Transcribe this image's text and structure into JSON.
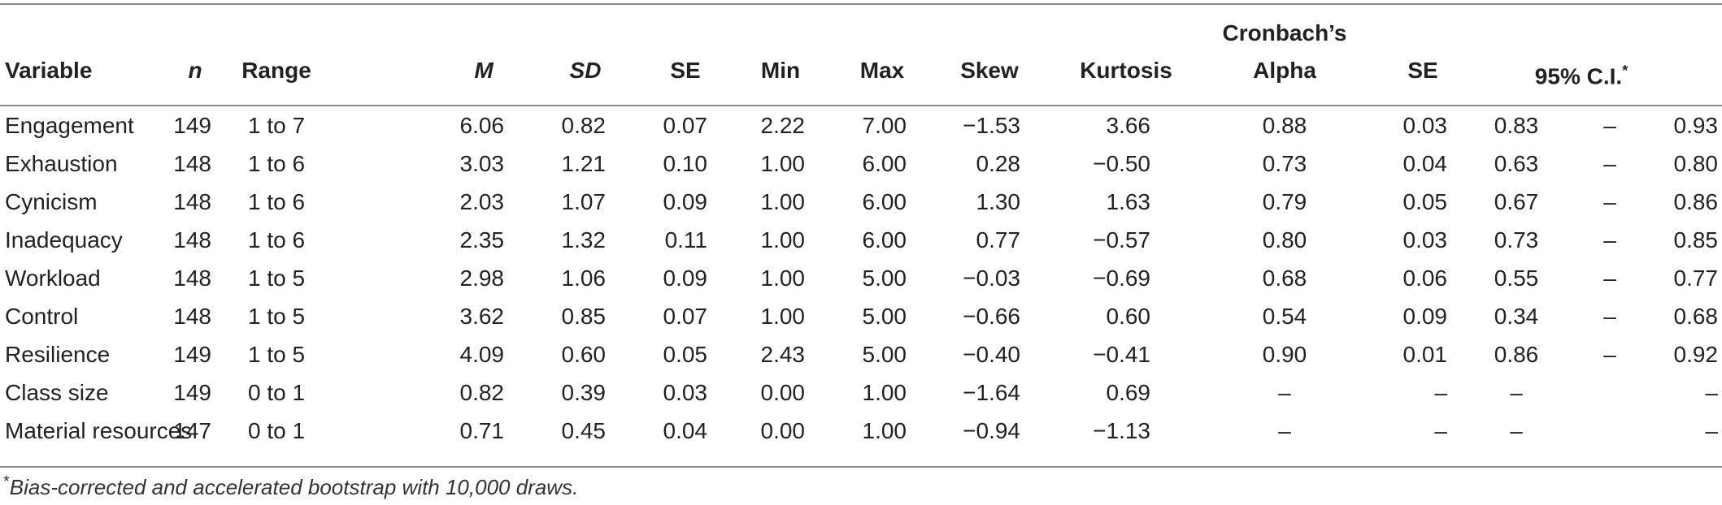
{
  "header": {
    "variable": "Variable",
    "n": "n",
    "range": "Range",
    "M": "M",
    "SD": "SD",
    "SE": "SE",
    "min": "Min",
    "max": "Max",
    "skew": "Skew",
    "kurtosis": "Kurtosis",
    "cronbach_line1": "Cronbach’s",
    "cronbach_line2": "Alpha",
    "alpha_se": "SE",
    "ci": "95% C.I.",
    "ci_marker": "*"
  },
  "rows": [
    {
      "variable": "Engagement",
      "n": "149",
      "range": "1 to 7",
      "M": "6.06",
      "SD": "0.82",
      "SE": "0.07",
      "min": "2.22",
      "max": "7.00",
      "skew": "−1.53",
      "kurtosis": "3.66",
      "alpha": "0.88",
      "alpha_se": "0.03",
      "ci_low": "0.83",
      "ci_sep": "–",
      "ci_high": "0.93"
    },
    {
      "variable": "Exhaustion",
      "n": "148",
      "range": "1 to 6",
      "M": "3.03",
      "SD": "1.21",
      "SE": "0.10",
      "min": "1.00",
      "max": "6.00",
      "skew": "0.28",
      "kurtosis": "−0.50",
      "alpha": "0.73",
      "alpha_se": "0.04",
      "ci_low": "0.63",
      "ci_sep": "–",
      "ci_high": "0.80"
    },
    {
      "variable": "Cynicism",
      "n": "148",
      "range": "1 to 6",
      "M": "2.03",
      "SD": "1.07",
      "SE": "0.09",
      "min": "1.00",
      "max": "6.00",
      "skew": "1.30",
      "kurtosis": "1.63",
      "alpha": "0.79",
      "alpha_se": "0.05",
      "ci_low": "0.67",
      "ci_sep": "–",
      "ci_high": "0.86"
    },
    {
      "variable": "Inadequacy",
      "n": "148",
      "range": "1 to 6",
      "M": "2.35",
      "SD": "1.32",
      "SE": "0.11",
      "min": "1.00",
      "max": "6.00",
      "skew": "0.77",
      "kurtosis": "−0.57",
      "alpha": "0.80",
      "alpha_se": "0.03",
      "ci_low": "0.73",
      "ci_sep": "–",
      "ci_high": "0.85"
    },
    {
      "variable": "Workload",
      "n": "148",
      "range": "1 to 5",
      "M": "2.98",
      "SD": "1.06",
      "SE": "0.09",
      "min": "1.00",
      "max": "5.00",
      "skew": "−0.03",
      "kurtosis": "−0.69",
      "alpha": "0.68",
      "alpha_se": "0.06",
      "ci_low": "0.55",
      "ci_sep": "–",
      "ci_high": "0.77"
    },
    {
      "variable": "Control",
      "n": "148",
      "range": "1 to 5",
      "M": "3.62",
      "SD": "0.85",
      "SE": "0.07",
      "min": "1.00",
      "max": "5.00",
      "skew": "−0.66",
      "kurtosis": "0.60",
      "alpha": "0.54",
      "alpha_se": "0.09",
      "ci_low": "0.34",
      "ci_sep": "–",
      "ci_high": "0.68"
    },
    {
      "variable": "Resilience",
      "n": "149",
      "range": "1 to 5",
      "M": "4.09",
      "SD": "0.60",
      "SE": "0.05",
      "min": "2.43",
      "max": "5.00",
      "skew": "−0.40",
      "kurtosis": "−0.41",
      "alpha": "0.90",
      "alpha_se": "0.01",
      "ci_low": "0.86",
      "ci_sep": "–",
      "ci_high": "0.92"
    },
    {
      "variable": "Class size",
      "n": "149",
      "range": "0 to 1",
      "M": "0.82",
      "SD": "0.39",
      "SE": "0.03",
      "min": "0.00",
      "max": "1.00",
      "skew": "−1.64",
      "kurtosis": "0.69",
      "alpha": "–",
      "alpha_se": "–",
      "ci_low": "–",
      "ci_sep": "",
      "ci_high": "–"
    },
    {
      "variable": "Material resources",
      "n": "147",
      "range": "0 to 1",
      "M": "0.71",
      "SD": "0.45",
      "SE": "0.04",
      "min": "0.00",
      "max": "1.00",
      "skew": "−0.94",
      "kurtosis": "−1.13",
      "alpha": "–",
      "alpha_se": "–",
      "ci_low": "–",
      "ci_sep": "",
      "ci_high": "–"
    }
  ],
  "footnote": {
    "marker": "*",
    "text": "Bias-corrected and accelerated bootstrap with 10,000 draws."
  }
}
